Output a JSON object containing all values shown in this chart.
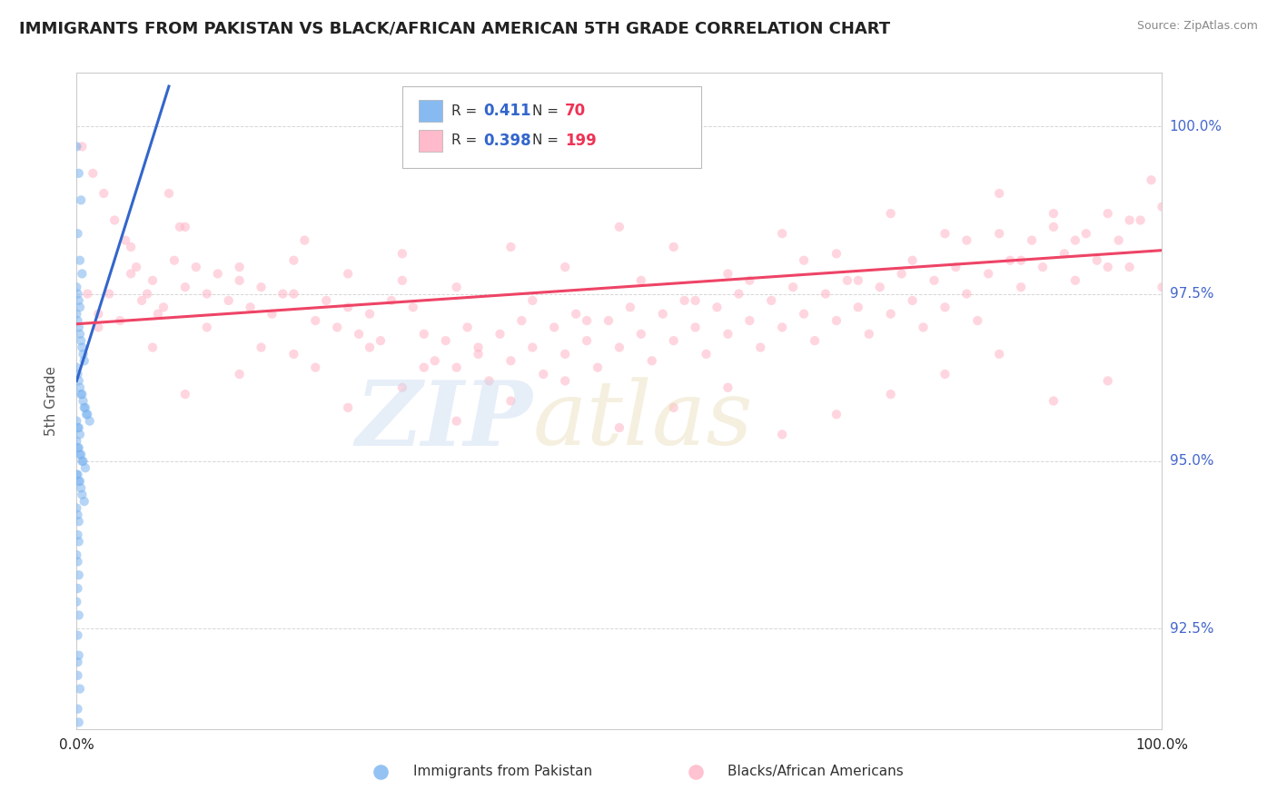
{
  "title": "IMMIGRANTS FROM PAKISTAN VS BLACK/AFRICAN AMERICAN 5TH GRADE CORRELATION CHART",
  "source_text": "Source: ZipAtlas.com",
  "ylabel": "5th Grade",
  "x_min": 0.0,
  "x_max": 1.0,
  "y_min": 0.91,
  "y_max": 1.008,
  "y_ticks": [
    0.925,
    0.95,
    0.975,
    1.0
  ],
  "y_tick_labels": [
    "92.5%",
    "95.0%",
    "97.5%",
    "100.0%"
  ],
  "x_ticks": [
    0.0,
    1.0
  ],
  "x_tick_labels": [
    "0.0%",
    "100.0%"
  ],
  "pakistan_color": "#7ab3f0",
  "black_color": "#ffb3c6",
  "pakistan_line_color": "#3366cc",
  "black_line_color": "#ee4466",
  "grid_color": "#cccccc",
  "background_color": "#ffffff",
  "scatter_size": 55,
  "scatter_alpha": 0.55,
  "pakistan_line": [
    [
      0.0,
      0.962
    ],
    [
      0.085,
      1.006
    ]
  ],
  "black_line": [
    [
      0.0,
      0.9705
    ],
    [
      1.0,
      0.9815
    ]
  ],
  "pakistan_scatter": [
    [
      0.0,
      0.997
    ],
    [
      0.002,
      0.993
    ],
    [
      0.004,
      0.989
    ],
    [
      0.001,
      0.984
    ],
    [
      0.003,
      0.98
    ],
    [
      0.005,
      0.978
    ],
    [
      0.0,
      0.976
    ],
    [
      0.001,
      0.975
    ],
    [
      0.002,
      0.974
    ],
    [
      0.003,
      0.973
    ],
    [
      0.0,
      0.972
    ],
    [
      0.001,
      0.971
    ],
    [
      0.002,
      0.97
    ],
    [
      0.003,
      0.969
    ],
    [
      0.004,
      0.968
    ],
    [
      0.005,
      0.967
    ],
    [
      0.006,
      0.966
    ],
    [
      0.007,
      0.965
    ],
    [
      0.0,
      0.964
    ],
    [
      0.001,
      0.963
    ],
    [
      0.002,
      0.962
    ],
    [
      0.003,
      0.961
    ],
    [
      0.004,
      0.96
    ],
    [
      0.005,
      0.96
    ],
    [
      0.006,
      0.959
    ],
    [
      0.007,
      0.958
    ],
    [
      0.008,
      0.958
    ],
    [
      0.009,
      0.957
    ],
    [
      0.01,
      0.957
    ],
    [
      0.012,
      0.956
    ],
    [
      0.0,
      0.956
    ],
    [
      0.001,
      0.955
    ],
    [
      0.002,
      0.955
    ],
    [
      0.003,
      0.954
    ],
    [
      0.0,
      0.953
    ],
    [
      0.001,
      0.952
    ],
    [
      0.002,
      0.952
    ],
    [
      0.003,
      0.951
    ],
    [
      0.004,
      0.951
    ],
    [
      0.005,
      0.95
    ],
    [
      0.006,
      0.95
    ],
    [
      0.008,
      0.949
    ],
    [
      0.0,
      0.948
    ],
    [
      0.001,
      0.948
    ],
    [
      0.002,
      0.947
    ],
    [
      0.003,
      0.947
    ],
    [
      0.004,
      0.946
    ],
    [
      0.005,
      0.945
    ],
    [
      0.007,
      0.944
    ],
    [
      0.0,
      0.943
    ],
    [
      0.001,
      0.942
    ],
    [
      0.002,
      0.941
    ],
    [
      0.001,
      0.939
    ],
    [
      0.002,
      0.938
    ],
    [
      0.0,
      0.936
    ],
    [
      0.001,
      0.935
    ],
    [
      0.002,
      0.933
    ],
    [
      0.001,
      0.931
    ],
    [
      0.0,
      0.929
    ],
    [
      0.002,
      0.927
    ],
    [
      0.001,
      0.924
    ],
    [
      0.002,
      0.921
    ],
    [
      0.001,
      0.918
    ],
    [
      0.003,
      0.916
    ],
    [
      0.001,
      0.913
    ],
    [
      0.002,
      0.911
    ],
    [
      0.001,
      0.908
    ],
    [
      0.002,
      0.905
    ],
    [
      0.002,
      0.902
    ],
    [
      0.001,
      0.92
    ]
  ],
  "black_scatter": [
    [
      0.005,
      0.997
    ],
    [
      0.015,
      0.993
    ],
    [
      0.025,
      0.99
    ],
    [
      0.035,
      0.986
    ],
    [
      0.045,
      0.983
    ],
    [
      0.055,
      0.979
    ],
    [
      0.065,
      0.975
    ],
    [
      0.075,
      0.972
    ],
    [
      0.085,
      0.99
    ],
    [
      0.095,
      0.985
    ],
    [
      0.01,
      0.975
    ],
    [
      0.02,
      0.972
    ],
    [
      0.03,
      0.975
    ],
    [
      0.04,
      0.971
    ],
    [
      0.05,
      0.978
    ],
    [
      0.06,
      0.974
    ],
    [
      0.07,
      0.977
    ],
    [
      0.08,
      0.973
    ],
    [
      0.09,
      0.98
    ],
    [
      0.1,
      0.976
    ],
    [
      0.11,
      0.979
    ],
    [
      0.12,
      0.975
    ],
    [
      0.13,
      0.978
    ],
    [
      0.14,
      0.974
    ],
    [
      0.15,
      0.977
    ],
    [
      0.16,
      0.973
    ],
    [
      0.17,
      0.976
    ],
    [
      0.18,
      0.972
    ],
    [
      0.19,
      0.975
    ],
    [
      0.2,
      0.98
    ],
    [
      0.21,
      0.983
    ],
    [
      0.22,
      0.971
    ],
    [
      0.23,
      0.974
    ],
    [
      0.24,
      0.97
    ],
    [
      0.25,
      0.973
    ],
    [
      0.26,
      0.969
    ],
    [
      0.27,
      0.972
    ],
    [
      0.28,
      0.968
    ],
    [
      0.29,
      0.974
    ],
    [
      0.3,
      0.977
    ],
    [
      0.31,
      0.973
    ],
    [
      0.32,
      0.969
    ],
    [
      0.33,
      0.965
    ],
    [
      0.34,
      0.968
    ],
    [
      0.35,
      0.964
    ],
    [
      0.36,
      0.97
    ],
    [
      0.37,
      0.966
    ],
    [
      0.38,
      0.962
    ],
    [
      0.39,
      0.969
    ],
    [
      0.4,
      0.965
    ],
    [
      0.41,
      0.971
    ],
    [
      0.42,
      0.967
    ],
    [
      0.43,
      0.963
    ],
    [
      0.44,
      0.97
    ],
    [
      0.45,
      0.966
    ],
    [
      0.46,
      0.972
    ],
    [
      0.47,
      0.968
    ],
    [
      0.48,
      0.964
    ],
    [
      0.49,
      0.971
    ],
    [
      0.5,
      0.967
    ],
    [
      0.51,
      0.973
    ],
    [
      0.52,
      0.969
    ],
    [
      0.53,
      0.965
    ],
    [
      0.54,
      0.972
    ],
    [
      0.55,
      0.968
    ],
    [
      0.56,
      0.974
    ],
    [
      0.57,
      0.97
    ],
    [
      0.58,
      0.966
    ],
    [
      0.59,
      0.973
    ],
    [
      0.6,
      0.969
    ],
    [
      0.61,
      0.975
    ],
    [
      0.62,
      0.971
    ],
    [
      0.63,
      0.967
    ],
    [
      0.64,
      0.974
    ],
    [
      0.65,
      0.97
    ],
    [
      0.66,
      0.976
    ],
    [
      0.67,
      0.972
    ],
    [
      0.68,
      0.968
    ],
    [
      0.69,
      0.975
    ],
    [
      0.7,
      0.971
    ],
    [
      0.71,
      0.977
    ],
    [
      0.72,
      0.973
    ],
    [
      0.73,
      0.969
    ],
    [
      0.74,
      0.976
    ],
    [
      0.75,
      0.972
    ],
    [
      0.76,
      0.978
    ],
    [
      0.77,
      0.974
    ],
    [
      0.78,
      0.97
    ],
    [
      0.79,
      0.977
    ],
    [
      0.8,
      0.973
    ],
    [
      0.81,
      0.979
    ],
    [
      0.82,
      0.975
    ],
    [
      0.83,
      0.971
    ],
    [
      0.84,
      0.978
    ],
    [
      0.85,
      0.984
    ],
    [
      0.86,
      0.98
    ],
    [
      0.87,
      0.976
    ],
    [
      0.88,
      0.983
    ],
    [
      0.89,
      0.979
    ],
    [
      0.9,
      0.985
    ],
    [
      0.91,
      0.981
    ],
    [
      0.92,
      0.977
    ],
    [
      0.93,
      0.984
    ],
    [
      0.94,
      0.98
    ],
    [
      0.95,
      0.987
    ],
    [
      0.96,
      0.983
    ],
    [
      0.97,
      0.979
    ],
    [
      0.98,
      0.986
    ],
    [
      0.99,
      0.992
    ],
    [
      1.0,
      0.988
    ],
    [
      0.1,
      0.96
    ],
    [
      0.15,
      0.963
    ],
    [
      0.2,
      0.966
    ],
    [
      0.25,
      0.958
    ],
    [
      0.3,
      0.961
    ],
    [
      0.35,
      0.956
    ],
    [
      0.4,
      0.959
    ],
    [
      0.45,
      0.962
    ],
    [
      0.5,
      0.955
    ],
    [
      0.55,
      0.958
    ],
    [
      0.6,
      0.961
    ],
    [
      0.65,
      0.954
    ],
    [
      0.7,
      0.957
    ],
    [
      0.75,
      0.96
    ],
    [
      0.8,
      0.963
    ],
    [
      0.85,
      0.966
    ],
    [
      0.9,
      0.959
    ],
    [
      0.95,
      0.962
    ],
    [
      0.05,
      0.982
    ],
    [
      0.1,
      0.985
    ],
    [
      0.15,
      0.979
    ],
    [
      0.2,
      0.975
    ],
    [
      0.25,
      0.978
    ],
    [
      0.3,
      0.981
    ],
    [
      0.35,
      0.976
    ],
    [
      0.4,
      0.982
    ],
    [
      0.45,
      0.979
    ],
    [
      0.5,
      0.985
    ],
    [
      0.55,
      0.982
    ],
    [
      0.6,
      0.978
    ],
    [
      0.65,
      0.984
    ],
    [
      0.7,
      0.981
    ],
    [
      0.75,
      0.987
    ],
    [
      0.8,
      0.984
    ],
    [
      0.85,
      0.99
    ],
    [
      0.9,
      0.987
    ],
    [
      0.95,
      0.979
    ],
    [
      1.0,
      0.976
    ],
    [
      0.02,
      0.97
    ],
    [
      0.07,
      0.967
    ],
    [
      0.12,
      0.97
    ],
    [
      0.17,
      0.967
    ],
    [
      0.22,
      0.964
    ],
    [
      0.27,
      0.967
    ],
    [
      0.32,
      0.964
    ],
    [
      0.37,
      0.967
    ],
    [
      0.42,
      0.974
    ],
    [
      0.47,
      0.971
    ],
    [
      0.52,
      0.977
    ],
    [
      0.57,
      0.974
    ],
    [
      0.62,
      0.977
    ],
    [
      0.67,
      0.98
    ],
    [
      0.72,
      0.977
    ],
    [
      0.77,
      0.98
    ],
    [
      0.82,
      0.983
    ],
    [
      0.87,
      0.98
    ],
    [
      0.92,
      0.983
    ],
    [
      0.97,
      0.986
    ]
  ]
}
